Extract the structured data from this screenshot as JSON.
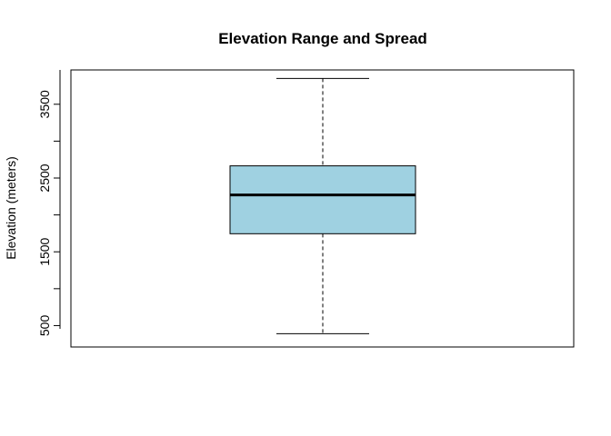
{
  "chart_data": {
    "type": "boxplot",
    "title": "Elevation Range and Spread",
    "xlabel": "",
    "ylabel": "Elevation (meters)",
    "ylim": [
      210,
      3965
    ],
    "yticks": [
      500,
      1000,
      1500,
      2000,
      2500,
      3000,
      3500
    ],
    "ytick_labels": [
      "500",
      "",
      "1500",
      "",
      "2500",
      "",
      "3500"
    ],
    "series": [
      {
        "min": 390,
        "q1": 1745,
        "median": 2270,
        "q3": 2665,
        "max": 3850
      }
    ],
    "colors": {
      "box_fill": "#9fd1e1",
      "stroke": "#000000"
    },
    "grid": false,
    "legend": "none"
  }
}
